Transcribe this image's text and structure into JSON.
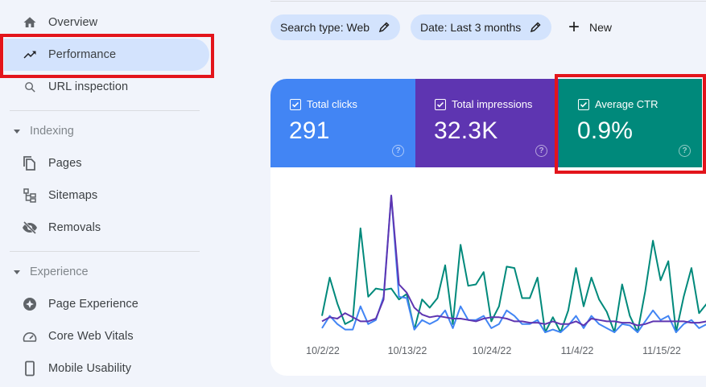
{
  "sidebar": {
    "items": [
      {
        "label": "Overview",
        "icon": "home-icon"
      },
      {
        "label": "Performance",
        "icon": "trending-up-icon",
        "active": true
      },
      {
        "label": "URL inspection",
        "icon": "search-icon"
      }
    ],
    "sections": [
      {
        "title": "Indexing",
        "items": [
          {
            "label": "Pages",
            "icon": "pages-icon"
          },
          {
            "label": "Sitemaps",
            "icon": "sitemap-icon"
          },
          {
            "label": "Removals",
            "icon": "eye-off-icon"
          }
        ]
      },
      {
        "title": "Experience",
        "items": [
          {
            "label": "Page Experience",
            "icon": "page-experience-icon"
          },
          {
            "label": "Core Web Vitals",
            "icon": "gauge-icon"
          },
          {
            "label": "Mobile Usability",
            "icon": "phone-icon"
          }
        ]
      }
    ]
  },
  "filters": {
    "chips": [
      {
        "label": "Search type: Web"
      },
      {
        "label": "Date: Last 3 months"
      }
    ],
    "new_label": "New"
  },
  "metrics": [
    {
      "label": "Total clicks",
      "value": "291",
      "checked": true,
      "color": "#4285f4"
    },
    {
      "label": "Total impressions",
      "value": "32.3K",
      "checked": true,
      "color": "#5e35b1"
    },
    {
      "label": "Average CTR",
      "value": "0.9%",
      "checked": true,
      "color": "#00897b"
    }
  ],
  "colors": {
    "highlight": "#e3141b",
    "active_nav": "#d3e3fd",
    "clicks": "#4285f4",
    "impressions": "#5e35b1",
    "ctr": "#00897b"
  },
  "chart_data": {
    "type": "line",
    "title": "",
    "xlabel": "",
    "ylabel": "",
    "grid": false,
    "legend": "none",
    "x_tick_labels": [
      "10/2/22",
      "10/13/22",
      "10/24/22",
      "11/4/22",
      "11/15/22"
    ],
    "x_start": "10/2/22",
    "x_step_days": 1,
    "y_scale_note": "relative height 0-100 (no y axis shown)",
    "series": [
      {
        "name": "Average CTR",
        "color": "#00897b",
        "values": [
          12,
          40,
          21,
          6,
          9,
          76,
          26,
          32,
          31,
          32,
          24,
          28,
          2,
          24,
          18,
          25,
          49,
          6,
          64,
          34,
          35,
          44,
          8,
          19,
          48,
          47,
          25,
          25,
          40,
          0,
          11,
          0,
          16,
          47,
          19,
          40,
          24,
          15,
          0,
          35,
          12,
          0,
          30,
          67,
          38,
          52,
          0,
          26,
          47,
          14,
          21
        ]
      },
      {
        "name": "Total clicks",
        "color": "#4285f4",
        "values": [
          3,
          12,
          6,
          2,
          2,
          19,
          6,
          9,
          26,
          100,
          26,
          25,
          2,
          9,
          6,
          9,
          16,
          3,
          19,
          9,
          9,
          12,
          3,
          6,
          16,
          12,
          6,
          6,
          9,
          0,
          2,
          0,
          5,
          12,
          3,
          12,
          6,
          3,
          0,
          6,
          5,
          0,
          8,
          16,
          9,
          12,
          0,
          6,
          9,
          3,
          6
        ]
      },
      {
        "name": "Total impressions",
        "color": "#5e35b1",
        "values": [
          8,
          11,
          10,
          14,
          11,
          8,
          8,
          10,
          24,
          100,
          35,
          29,
          18,
          13,
          11,
          12,
          11,
          10,
          10,
          9,
          8,
          10,
          11,
          11,
          10,
          8,
          8,
          7,
          7,
          6,
          8,
          6,
          6,
          8,
          5,
          10,
          9,
          8,
          8,
          7,
          7,
          5,
          6,
          8,
          8,
          8,
          8,
          8,
          7,
          7,
          8
        ]
      }
    ]
  }
}
